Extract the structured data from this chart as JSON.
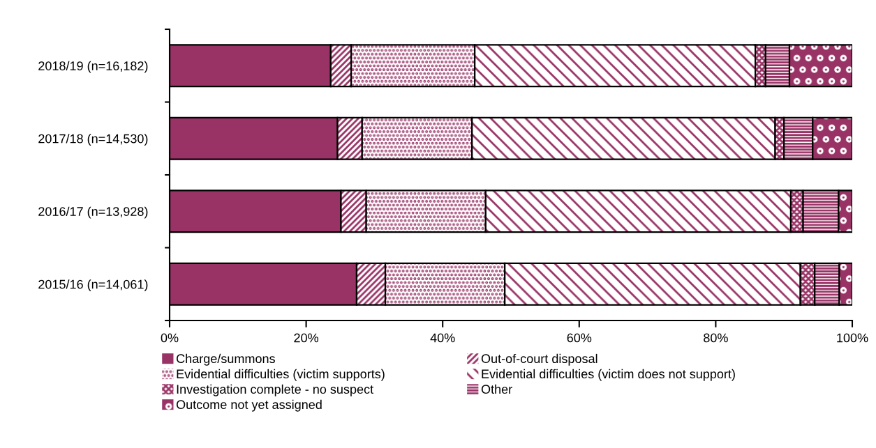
{
  "chart_data": {
    "type": "bar",
    "orientation": "horizontal",
    "stacked": true,
    "categories": [
      "2018/19 (n=16,182)",
      "2017/18 (n=14,530)",
      "2016/17 (n=13,928)",
      "2015/16 (n=14,061)"
    ],
    "series": [
      {
        "name": "Charge/summons",
        "color": "#993366",
        "values": [
          23.6,
          24.6,
          25.1,
          27.4
        ]
      },
      {
        "name": "Out-of-court disposal",
        "color": "#993366",
        "values": [
          3.0,
          3.6,
          3.7,
          4.2
        ]
      },
      {
        "name": "Evidential difficulties (victim supports)",
        "color": "#993366",
        "values": [
          18.1,
          16.1,
          17.5,
          17.5
        ]
      },
      {
        "name": "Evidential difficulties (victim does not support)",
        "color": "#993366",
        "values": [
          41.1,
          44.4,
          44.7,
          43.3
        ]
      },
      {
        "name": "Investigation complete - no suspect",
        "color": "#993366",
        "values": [
          1.5,
          1.3,
          1.8,
          2.1
        ]
      },
      {
        "name": "Other",
        "color": "#993366",
        "values": [
          3.5,
          4.2,
          5.2,
          3.6
        ]
      },
      {
        "name": "Outcome not yet assigned",
        "color": "#993366",
        "values": [
          9.2,
          5.8,
          2.0,
          1.9
        ]
      }
    ],
    "xlim": [
      0,
      100
    ],
    "xticks": [
      {
        "value": 0,
        "label": "0%"
      },
      {
        "value": 20,
        "label": "20%"
      },
      {
        "value": 40,
        "label": "40%"
      },
      {
        "value": 60,
        "label": "60%"
      },
      {
        "value": 80,
        "label": "80%"
      },
      {
        "value": 100,
        "label": "100%"
      }
    ],
    "grid": false,
    "legend": "bottom"
  }
}
